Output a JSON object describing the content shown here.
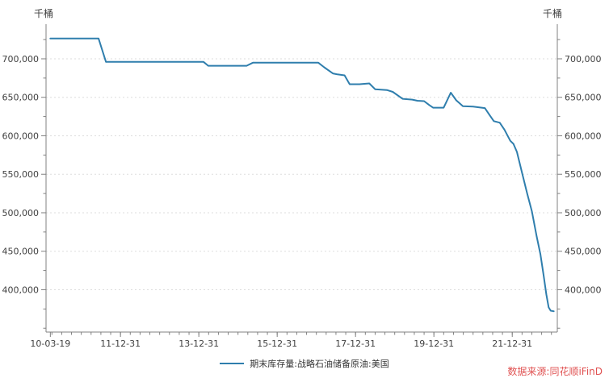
{
  "axes": {
    "y_unit_left": "千桶",
    "y_unit_right": "千桶"
  },
  "legend": {
    "label": "期末库存量:战略石油储备原油:美国"
  },
  "watermark": {
    "text": "数据来源:同花顺iFinD"
  },
  "colors": {
    "line": "#2f7ead",
    "grid": "#dddddd",
    "axis": "#808080",
    "tick_text": "#404040",
    "legend_text": "#333333",
    "watermark": "#e05252",
    "background": "#ffffff"
  },
  "chart_data": {
    "type": "line",
    "title": "",
    "xlabel": "",
    "ylabel": "千桶",
    "legend_position": "bottom-center",
    "grid": "horizontal-dotted",
    "xlim": [
      2010.1,
      2023.15
    ],
    "ylim": [
      345000,
      745000
    ],
    "y_minor_step": 25000,
    "x_minor_step_years": 0.25,
    "x_ticks": [
      {
        "year": 2010.21,
        "label": "10-03-19"
      },
      {
        "year": 2012.0,
        "label": "11-12-31"
      },
      {
        "year": 2014.0,
        "label": "13-12-31"
      },
      {
        "year": 2016.0,
        "label": "15-12-31"
      },
      {
        "year": 2018.0,
        "label": "17-12-31"
      },
      {
        "year": 2020.0,
        "label": "19-12-31"
      },
      {
        "year": 2022.0,
        "label": "21-12-31"
      }
    ],
    "y_tick_labels": [
      {
        "value": 700000,
        "label": "700,000"
      },
      {
        "value": 650000,
        "label": "650,000"
      },
      {
        "value": 600000,
        "label": "600,000"
      },
      {
        "value": 550000,
        "label": "550,000"
      },
      {
        "value": 500000,
        "label": "500,000"
      },
      {
        "value": 450000,
        "label": "450,000"
      },
      {
        "value": 400000,
        "label": "400,000"
      }
    ],
    "series": [
      {
        "name": "期末库存量:战略石油储备原油:美国",
        "color": "#2f7ead",
        "points": [
          [
            2010.21,
            726500
          ],
          [
            2011.44,
            726500
          ],
          [
            2011.63,
            696000
          ],
          [
            2014.12,
            696000
          ],
          [
            2014.24,
            691000
          ],
          [
            2015.22,
            691000
          ],
          [
            2015.38,
            695000
          ],
          [
            2017.05,
            695000
          ],
          [
            2017.2,
            689000
          ],
          [
            2017.42,
            681000
          ],
          [
            2017.52,
            680000
          ],
          [
            2017.72,
            678500
          ],
          [
            2017.85,
            667000
          ],
          [
            2018.1,
            667000
          ],
          [
            2018.35,
            668000
          ],
          [
            2018.5,
            660500
          ],
          [
            2018.8,
            659500
          ],
          [
            2018.95,
            657000
          ],
          [
            2019.2,
            648000
          ],
          [
            2019.45,
            647000
          ],
          [
            2019.58,
            645500
          ],
          [
            2019.75,
            645000
          ],
          [
            2019.88,
            640000
          ],
          [
            2019.98,
            636500
          ],
          [
            2020.25,
            636500
          ],
          [
            2020.43,
            656000
          ],
          [
            2020.57,
            646000
          ],
          [
            2020.74,
            638500
          ],
          [
            2021.0,
            638000
          ],
          [
            2021.3,
            636000
          ],
          [
            2021.42,
            627000
          ],
          [
            2021.53,
            619000
          ],
          [
            2021.68,
            617000
          ],
          [
            2021.8,
            608000
          ],
          [
            2021.95,
            593500
          ],
          [
            2022.03,
            589500
          ],
          [
            2022.12,
            579000
          ],
          [
            2022.26,
            550000
          ],
          [
            2022.38,
            525000
          ],
          [
            2022.5,
            502000
          ],
          [
            2022.62,
            470000
          ],
          [
            2022.72,
            446000
          ],
          [
            2022.8,
            419000
          ],
          [
            2022.87,
            394000
          ],
          [
            2022.93,
            377000
          ],
          [
            2022.98,
            372800
          ],
          [
            2023.06,
            372000
          ]
        ]
      }
    ]
  }
}
